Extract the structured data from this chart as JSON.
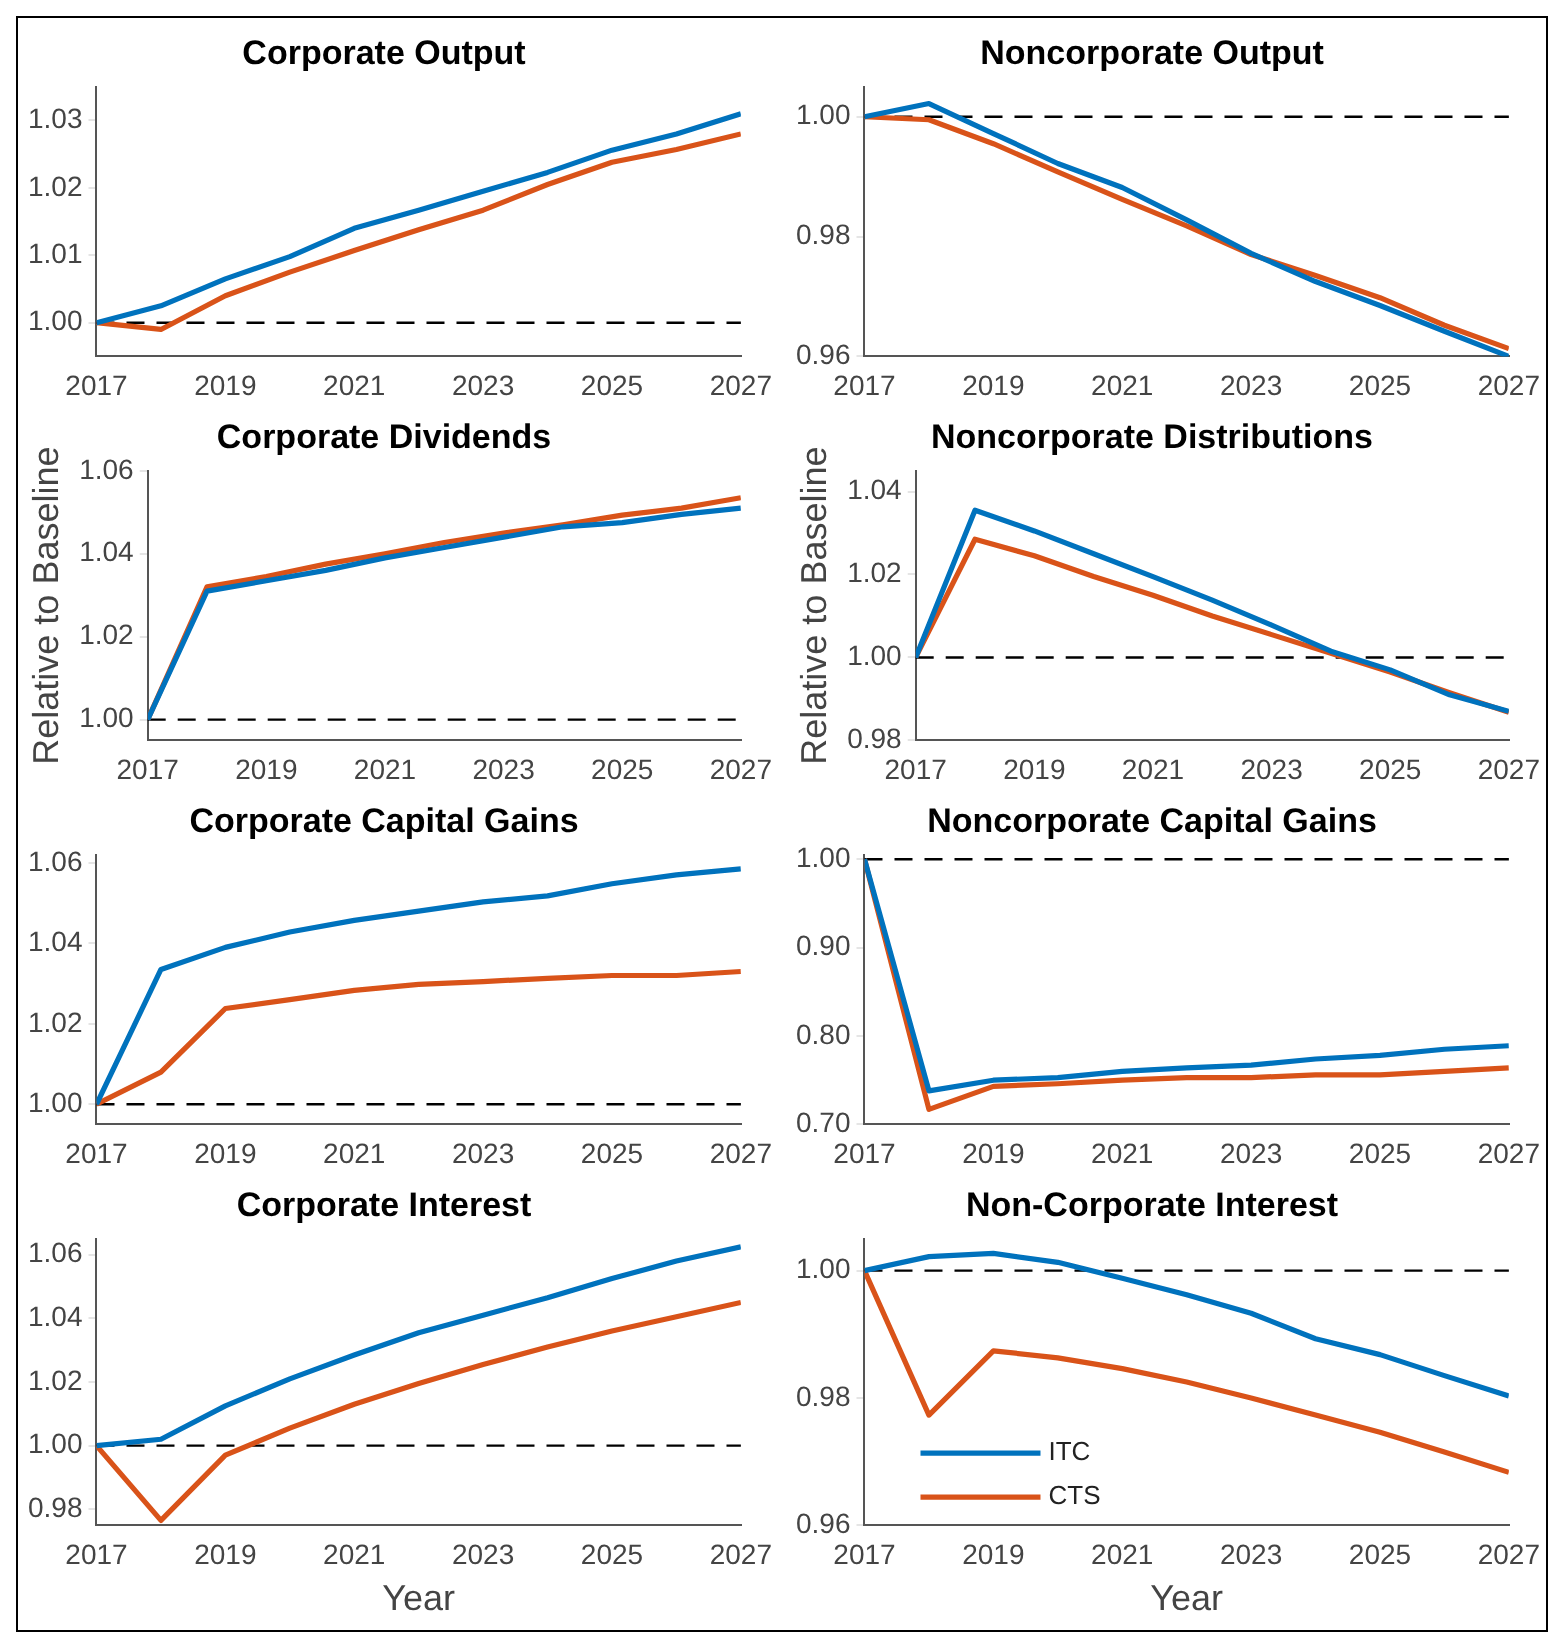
{
  "chart_data": [
    {
      "type": "line",
      "title": "Corporate Output",
      "x": [
        2017,
        2018,
        2019,
        2020,
        2021,
        2022,
        2023,
        2024,
        2025,
        2026,
        2027
      ],
      "xlim": [
        2017,
        2027
      ],
      "xticks": [
        2017,
        2019,
        2021,
        2023,
        2025,
        2027
      ],
      "ylim": [
        0.995,
        1.035
      ],
      "yticks": [
        {
          "value": 1,
          "label": "1.00"
        },
        {
          "value": 1.01,
          "label": "1.01"
        },
        {
          "value": 1.02,
          "label": "1.02"
        },
        {
          "value": 1.03,
          "label": "1.03"
        }
      ],
      "grid": false,
      "legend": false,
      "series": [
        {
          "color": "#0072bd",
          "values": [
            1.0,
            1.0025,
            1.0065,
            1.0098,
            1.014,
            1.0167,
            1.0195,
            1.0223,
            1.0256,
            1.028,
            1.031
          ]
        },
        {
          "color": "#d95319",
          "values": [
            1.0,
            0.999,
            1.004,
            1.0075,
            1.0107,
            1.0138,
            1.0167,
            1.0205,
            1.0238,
            1.0257,
            1.028
          ]
        }
      ],
      "ref_lines": [
        {
          "axis": "y",
          "value": 1,
          "color": "#000000",
          "line_style": "dashed"
        }
      ]
    },
    {
      "type": "line",
      "title": "Noncorporate Output",
      "x": [
        2017,
        2018,
        2019,
        2020,
        2021,
        2022,
        2023,
        2024,
        2025,
        2026,
        2027
      ],
      "xlim": [
        2017,
        2027
      ],
      "xticks": [
        2017,
        2019,
        2021,
        2023,
        2025,
        2027
      ],
      "ylim": [
        0.96,
        1.005
      ],
      "yticks": [
        {
          "value": 0.96,
          "label": "0.96"
        },
        {
          "value": 0.98,
          "label": "0.98"
        },
        {
          "value": 1,
          "label": "1.00"
        }
      ],
      "grid": false,
      "legend": false,
      "series": [
        {
          "color": "#0072bd",
          "values": [
            1.0,
            1.0022,
            0.9972,
            0.9922,
            0.9882,
            0.9828,
            0.9772,
            0.9725,
            0.9685,
            0.9642,
            0.96
          ]
        },
        {
          "color": "#d95319",
          "values": [
            1.0,
            0.9995,
            0.9955,
            0.9908,
            0.9862,
            0.9818,
            0.977,
            0.9735,
            0.9698,
            0.9652,
            0.9613
          ]
        }
      ],
      "ref_lines": [
        {
          "axis": "y",
          "value": 1,
          "color": "#000000",
          "line_style": "dashed"
        }
      ]
    },
    {
      "type": "line",
      "title": "Corporate Dividends",
      "ylabel": "Relative to Baseline",
      "x": [
        2017,
        2018,
        2019,
        2020,
        2021,
        2022,
        2023,
        2024,
        2025,
        2026,
        2027
      ],
      "xlim": [
        2017,
        2027
      ],
      "xticks": [
        2017,
        2019,
        2021,
        2023,
        2025,
        2027
      ],
      "ylim": [
        0.995,
        1.06
      ],
      "yticks": [
        {
          "value": 1,
          "label": "1.00"
        },
        {
          "value": 1.02,
          "label": "1.02"
        },
        {
          "value": 1.04,
          "label": "1.04"
        },
        {
          "value": 1.06,
          "label": "1.06"
        }
      ],
      "grid": false,
      "legend": false,
      "series": [
        {
          "color": "#0072bd",
          "values": [
            1.0,
            1.031,
            1.0335,
            1.036,
            1.039,
            1.0415,
            1.044,
            1.0465,
            1.0475,
            1.0495,
            1.051
          ]
        },
        {
          "color": "#d95319",
          "values": [
            1.0,
            1.032,
            1.0345,
            1.0375,
            1.04,
            1.0427,
            1.045,
            1.047,
            1.0493,
            1.051,
            1.0535
          ]
        }
      ],
      "ref_lines": [
        {
          "axis": "y",
          "value": 1,
          "color": "#000000",
          "line_style": "dashed"
        }
      ]
    },
    {
      "type": "line",
      "title": "Noncorporate Distributions",
      "ylabel": "Relative to Baseline",
      "x": [
        2017,
        2018,
        2019,
        2020,
        2021,
        2022,
        2023,
        2024,
        2025,
        2026,
        2027
      ],
      "xlim": [
        2017,
        2027
      ],
      "xticks": [
        2017,
        2019,
        2021,
        2023,
        2025,
        2027
      ],
      "ylim": [
        0.98,
        1.045
      ],
      "yticks": [
        {
          "value": 0.98,
          "label": "0.98"
        },
        {
          "value": 1,
          "label": "1.00"
        },
        {
          "value": 1.02,
          "label": "1.02"
        },
        {
          "value": 1.04,
          "label": "1.04"
        }
      ],
      "grid": false,
      "legend": false,
      "series": [
        {
          "color": "#0072bd",
          "values": [
            1.0,
            1.0355,
            1.0305,
            1.025,
            1.0195,
            1.0138,
            1.0078,
            1.0015,
            0.997,
            0.991,
            0.987
          ]
        },
        {
          "color": "#d95319",
          "values": [
            1.0,
            1.0285,
            1.0245,
            1.0195,
            1.015,
            1.01,
            1.0055,
            1.001,
            0.9965,
            0.9915,
            0.9868
          ]
        }
      ],
      "ref_lines": [
        {
          "axis": "y",
          "value": 1,
          "color": "#000000",
          "line_style": "dashed"
        }
      ]
    },
    {
      "type": "line",
      "title": "Corporate Capital Gains",
      "x": [
        2017,
        2018,
        2019,
        2020,
        2021,
        2022,
        2023,
        2024,
        2025,
        2026,
        2027
      ],
      "xlim": [
        2017,
        2027
      ],
      "xticks": [
        2017,
        2019,
        2021,
        2023,
        2025,
        2027
      ],
      "ylim": [
        0.995,
        1.062
      ],
      "yticks": [
        {
          "value": 1,
          "label": "1.00"
        },
        {
          "value": 1.02,
          "label": "1.02"
        },
        {
          "value": 1.04,
          "label": "1.04"
        },
        {
          "value": 1.06,
          "label": "1.06"
        }
      ],
      "grid": false,
      "legend": false,
      "series": [
        {
          "color": "#0072bd",
          "values": [
            1.0,
            1.0335,
            1.039,
            1.0428,
            1.0457,
            1.048,
            1.0503,
            1.0518,
            1.0548,
            1.057,
            1.0585
          ]
        },
        {
          "color": "#d95319",
          "values": [
            1.0,
            1.008,
            1.0238,
            1.026,
            1.0283,
            1.0298,
            1.0305,
            1.0313,
            1.032,
            1.032,
            1.033
          ]
        }
      ],
      "ref_lines": [
        {
          "axis": "y",
          "value": 1,
          "color": "#000000",
          "line_style": "dashed"
        }
      ]
    },
    {
      "type": "line",
      "title": "Noncorporate Capital Gains",
      "x": [
        2017,
        2018,
        2019,
        2020,
        2021,
        2022,
        2023,
        2024,
        2025,
        2026,
        2027
      ],
      "xlim": [
        2017,
        2027
      ],
      "xticks": [
        2017,
        2019,
        2021,
        2023,
        2025,
        2027
      ],
      "ylim": [
        0.7,
        1.005
      ],
      "yticks": [
        {
          "value": 0.7,
          "label": "0.70"
        },
        {
          "value": 0.8,
          "label": "0.80"
        },
        {
          "value": 0.9,
          "label": "0.90"
        },
        {
          "value": 1,
          "label": "1.00"
        }
      ],
      "grid": false,
      "legend": false,
      "series": [
        {
          "color": "#0072bd",
          "values": [
            1.0,
            0.738,
            0.75,
            0.753,
            0.76,
            0.764,
            0.767,
            0.774,
            0.778,
            0.785,
            0.789
          ]
        },
        {
          "color": "#d95319",
          "values": [
            1.0,
            0.717,
            0.743,
            0.746,
            0.75,
            0.753,
            0.753,
            0.756,
            0.756,
            0.76,
            0.764
          ]
        }
      ],
      "ref_lines": [
        {
          "axis": "y",
          "value": 1,
          "color": "#000000",
          "line_style": "dashed"
        }
      ]
    },
    {
      "type": "line",
      "title": "Corporate Interest",
      "xlabel": "Year",
      "x": [
        2017,
        2018,
        2019,
        2020,
        2021,
        2022,
        2023,
        2024,
        2025,
        2026,
        2027
      ],
      "xlim": [
        2017,
        2027
      ],
      "xticks": [
        2017,
        2019,
        2021,
        2023,
        2025,
        2027
      ],
      "ylim": [
        0.975,
        1.065
      ],
      "yticks": [
        {
          "value": 0.98,
          "label": "0.98"
        },
        {
          "value": 1,
          "label": "1.00"
        },
        {
          "value": 1.02,
          "label": "1.02"
        },
        {
          "value": 1.04,
          "label": "1.04"
        },
        {
          "value": 1.06,
          "label": "1.06"
        }
      ],
      "grid": false,
      "legend": false,
      "series": [
        {
          "color": "#0072bd",
          "values": [
            1.0,
            1.002,
            1.0125,
            1.021,
            1.0285,
            1.0355,
            1.041,
            1.0465,
            1.0525,
            1.058,
            1.0625
          ]
        },
        {
          "color": "#d95319",
          "values": [
            1.0,
            0.9765,
            0.997,
            1.0055,
            1.013,
            1.0195,
            1.0255,
            1.031,
            1.036,
            1.0405,
            1.045
          ]
        }
      ],
      "ref_lines": [
        {
          "axis": "y",
          "value": 1,
          "color": "#000000",
          "line_style": "dashed"
        }
      ]
    },
    {
      "type": "line",
      "title": "Non-Corporate Interest",
      "xlabel": "Year",
      "x": [
        2017,
        2018,
        2019,
        2020,
        2021,
        2022,
        2023,
        2024,
        2025,
        2026,
        2027
      ],
      "xlim": [
        2017,
        2027
      ],
      "xticks": [
        2017,
        2019,
        2021,
        2023,
        2025,
        2027
      ],
      "ylim": [
        0.96,
        1.005
      ],
      "yticks": [
        {
          "value": 0.96,
          "label": "0.96"
        },
        {
          "value": 0.98,
          "label": "0.98"
        },
        {
          "value": 1,
          "label": "1.00"
        }
      ],
      "grid": false,
      "legend": "bottom left",
      "series": [
        {
          "name": "ITC",
          "color": "#0072bd",
          "values": [
            1.0,
            1.0022,
            1.0027,
            1.0013,
            0.9988,
            0.9962,
            0.9933,
            0.9893,
            0.9868,
            0.9835,
            0.9803
          ]
        },
        {
          "name": "CTS",
          "color": "#d95319",
          "values": [
            1.0,
            0.9773,
            0.9874,
            0.9863,
            0.9846,
            0.9825,
            0.98,
            0.9773,
            0.9746,
            0.9715,
            0.9683
          ]
        }
      ],
      "ref_lines": [
        {
          "axis": "y",
          "value": 1,
          "color": "#000000",
          "line_style": "dashed"
        }
      ]
    }
  ]
}
